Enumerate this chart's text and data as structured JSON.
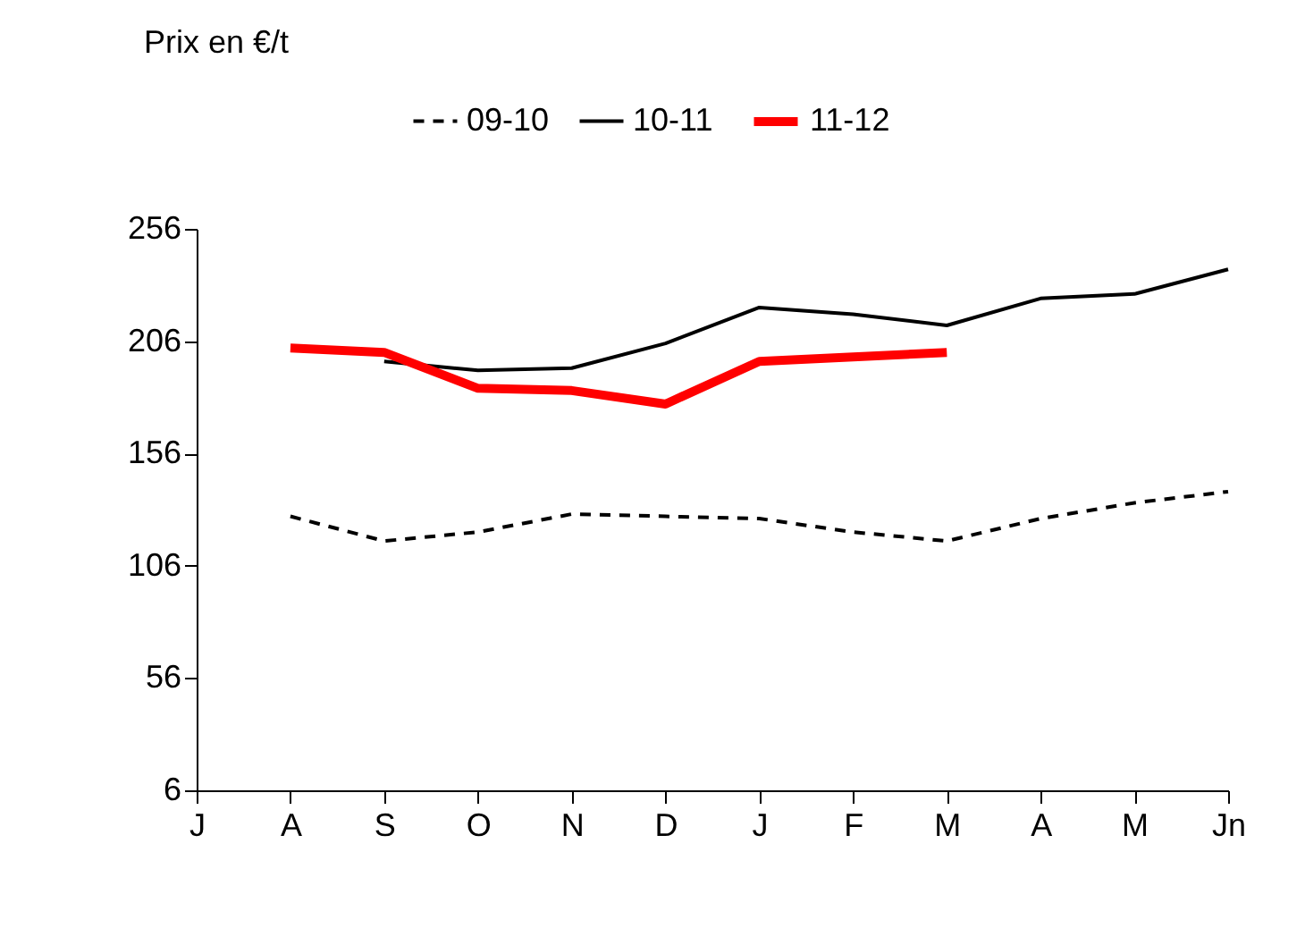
{
  "chart_data": {
    "type": "line",
    "ylabel": "Prix en €/t",
    "categories": [
      "J",
      "A",
      "S",
      "O",
      "N",
      "D",
      "J",
      "F",
      "M",
      "A",
      "M",
      "Jn"
    ],
    "series": [
      {
        "name": "09-10",
        "color": "#000000",
        "line_style": "dashed",
        "values": [
          null,
          128,
          117,
          121,
          129,
          128,
          127,
          121,
          117,
          127,
          134,
          139
        ]
      },
      {
        "name": "10-11",
        "color": "#000000",
        "line_style": "solid",
        "values": [
          null,
          null,
          197,
          193,
          194,
          205,
          221,
          218,
          213,
          225,
          227,
          238
        ]
      },
      {
        "name": "11-12",
        "color": "#ff0000",
        "line_style": "solid",
        "values": [
          null,
          203,
          201,
          185,
          184,
          178,
          197,
          199,
          201,
          null,
          null,
          null
        ]
      }
    ],
    "ylim": [
      6,
      256
    ],
    "yticks": [
      6,
      56,
      106,
      156,
      206,
      256
    ],
    "grid": false,
    "legend": "top",
    "marker": "none"
  }
}
